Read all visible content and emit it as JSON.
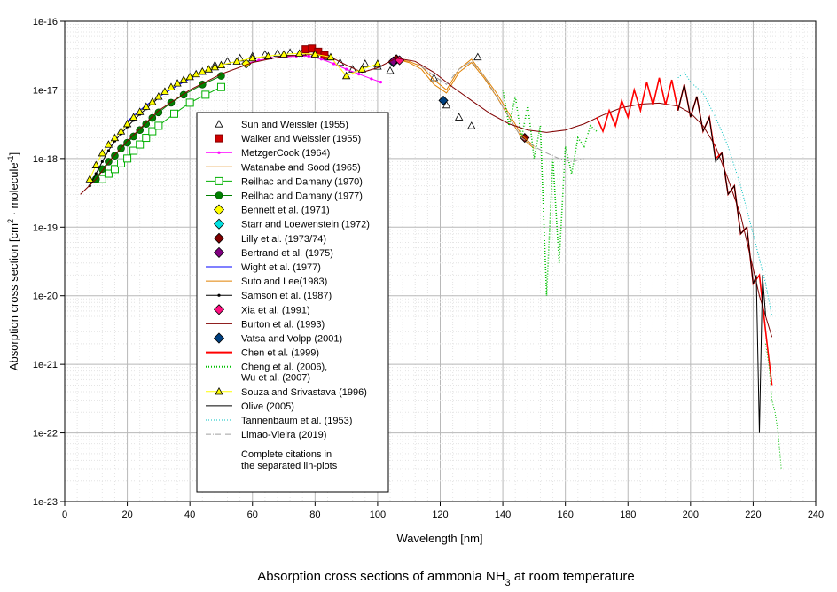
{
  "chart_data": {
    "type": "line",
    "title": "Absorption cross sections of ammonia NH3 at room temperature",
    "title_parts": {
      "main": "Absorption cross sections of ammonia NH",
      "sub": "3",
      "tail": " at room temperature"
    },
    "xlabel": "Wavelength [nm]",
    "ylabel_parts": {
      "a": "Absorption cross section [cm",
      "b": "2",
      "c": " · molecule",
      "d": "-1",
      "e": "]"
    },
    "xlim": [
      0,
      240
    ],
    "ylim_log10": [
      -23,
      -16
    ],
    "grid": true,
    "x_ticks": [
      0,
      20,
      40,
      60,
      80,
      100,
      120,
      140,
      160,
      180,
      200,
      220,
      240
    ],
    "y_ticks": [
      {
        "label": "1e-16",
        "exp": -16
      },
      {
        "label": "1e-17",
        "exp": -17
      },
      {
        "label": "1e-18",
        "exp": -18
      },
      {
        "label": "1e-19",
        "exp": -19
      },
      {
        "label": "1e-20",
        "exp": -20
      },
      {
        "label": "1e-21",
        "exp": -21
      },
      {
        "label": "1e-22",
        "exp": -22
      },
      {
        "label": "1e-23",
        "exp": -23
      }
    ],
    "legend_position": "center-left",
    "legend_note": [
      "Complete citations in",
      "the separated lin-plots"
    ],
    "series": [
      {
        "name": "Sun and Weissler (1955)",
        "style": "marker",
        "marker": "triangle-open",
        "color": "#000000",
        "x": [
          48,
          52,
          56,
          60,
          64,
          68,
          72,
          76,
          80,
          84,
          88,
          92,
          96,
          100,
          104,
          118,
          122,
          126,
          130,
          132
        ],
        "y": [
          2.3e-17,
          2.6e-17,
          2.9e-17,
          3.1e-17,
          3.3e-17,
          3.4e-17,
          3.5e-17,
          3.5e-17,
          3.4e-17,
          3e-17,
          2.5e-17,
          2e-17,
          2.4e-17,
          2.2e-17,
          1.9e-17,
          1.5e-17,
          6e-18,
          4e-18,
          3e-18,
          3e-17
        ]
      },
      {
        "name": "Walker and Weissler (1955)",
        "style": "marker",
        "marker": "square-filled",
        "color": "#d00000",
        "x": [
          77,
          79,
          81,
          83
        ],
        "y": [
          3.9e-17,
          4e-17,
          3.6e-17,
          3.2e-17
        ]
      },
      {
        "name": "MetzgerCook (1964)",
        "style": "line-marker",
        "marker": "dot",
        "color": "#ff00ff",
        "x": [
          58,
          62,
          66,
          70,
          74,
          78,
          82,
          86,
          90,
          94,
          98,
          101
        ],
        "y": [
          2.4e-17,
          2.7e-17,
          2.9e-17,
          3e-17,
          3.1e-17,
          3.1e-17,
          2.8e-17,
          2.4e-17,
          2e-17,
          1.7e-17,
          1.45e-17,
          1.3e-17
        ]
      },
      {
        "name": "Watanabe and Sood (1965)",
        "style": "line",
        "color": "#e08000",
        "x": [
          106,
          110,
          114,
          118,
          122,
          126,
          130,
          134,
          138,
          142,
          146,
          150
        ],
        "y": [
          2.8e-17,
          2.5e-17,
          2e-17,
          1.2e-17,
          9e-18,
          1.8e-17,
          2.5e-17,
          1.5e-17,
          8e-18,
          4e-18,
          2e-18,
          1.4e-18
        ]
      },
      {
        "name": "Reilhac and Damany (1970)",
        "style": "line-marker",
        "marker": "square-open",
        "color": "#00b000",
        "x": [
          12,
          14,
          16,
          18,
          20,
          22,
          24,
          26,
          28,
          30,
          35,
          40,
          45,
          50
        ],
        "y": [
          5e-19,
          6e-19,
          7e-19,
          8.5e-19,
          1e-18,
          1.3e-18,
          1.6e-18,
          2e-18,
          2.5e-18,
          3e-18,
          4.5e-18,
          6.5e-18,
          8.5e-18,
          1.1e-17
        ]
      },
      {
        "name": "Reilhac and Damany (1977)",
        "style": "line-marker",
        "marker": "circle-filled",
        "color": "#008000",
        "x": [
          10,
          12,
          14,
          16,
          18,
          20,
          22,
          24,
          26,
          28,
          30,
          34,
          38,
          44,
          50
        ],
        "y": [
          5e-19,
          7e-19,
          9e-19,
          1.1e-18,
          1.4e-18,
          1.7e-18,
          2.1e-18,
          2.6e-18,
          3.2e-18,
          3.9e-18,
          4.7e-18,
          6.5e-18,
          8.5e-18,
          1.2e-17,
          1.6e-17
        ]
      },
      {
        "name": "Bennett et al. (1971)",
        "style": "marker",
        "marker": "diamond-filled",
        "color": "#ffff00",
        "x": [
          58
        ],
        "y": [
          2.4e-17
        ]
      },
      {
        "name": "Starr and Loewenstein (1972)",
        "style": "marker",
        "marker": "diamond-filled",
        "color": "#00e0e0",
        "x": [
          105
        ],
        "y": [
          2.5e-17
        ]
      },
      {
        "name": "Lilly et al. (1973/74)",
        "style": "marker",
        "marker": "diamond-filled",
        "color": "#800000",
        "x": [
          106,
          147
        ],
        "y": [
          2.8e-17,
          2e-18
        ]
      },
      {
        "name": "Bertrand et al. (1975)",
        "style": "marker",
        "marker": "diamond-filled",
        "color": "#800080",
        "x": [
          105
        ],
        "y": [
          2.6e-17
        ]
      },
      {
        "name": "Wight et al. (1977)",
        "style": "line",
        "color": "#0000ff",
        "x": [
          20,
          26,
          32,
          38,
          44
        ],
        "y": [
          3.5e-18,
          6e-18,
          9e-18,
          1.3e-17,
          1.8e-17
        ]
      },
      {
        "name": "Suto and Lee(1983)",
        "style": "line",
        "color": "#e08000",
        "x": [
          106,
          110,
          114,
          118,
          122,
          126,
          130,
          134,
          138,
          142,
          146,
          150
        ],
        "y": [
          2.8e-17,
          2.6e-17,
          2.2e-17,
          1.4e-17,
          1e-17,
          2e-17,
          2.8e-17,
          1.6e-17,
          9e-18,
          4.5e-18,
          2.2e-18,
          1.5e-18
        ]
      },
      {
        "name": "Samson et al. (1987)",
        "style": "line-marker",
        "marker": "dot",
        "color": "#000000",
        "x": [
          8,
          10,
          12,
          14,
          16,
          18,
          20,
          22,
          24,
          26,
          28,
          30
        ],
        "y": [
          4e-19,
          6e-19,
          9e-19,
          1.3e-18,
          1.8e-18,
          2.3e-18,
          2.9e-18,
          3.6e-18,
          4.4e-18,
          5.3e-18,
          6.4e-18,
          7.6e-18
        ]
      },
      {
        "name": "Xia et al. (1991)",
        "style": "marker",
        "marker": "diamond-filled",
        "color": "#ff1080",
        "x": [
          107
        ],
        "y": [
          2.7e-17
        ]
      },
      {
        "name": "Burton et al. (1993)",
        "style": "line",
        "color": "#800000",
        "x": [
          5,
          10,
          15,
          20,
          25,
          30,
          40,
          50,
          60,
          70,
          80,
          85,
          90,
          95,
          100,
          106,
          112,
          118,
          124,
          130,
          136,
          142,
          148,
          154,
          160,
          166,
          172,
          178,
          184,
          190,
          196,
          200,
          204,
          208,
          212,
          216,
          220,
          222,
          224,
          226
        ],
        "y": [
          3e-19,
          5e-19,
          1e-18,
          1.8e-18,
          3e-18,
          5e-18,
          1e-17,
          1.7e-17,
          2.5e-17,
          3.1e-17,
          3.3e-17,
          3e-17,
          2.3e-17,
          1.8e-17,
          2.1e-17,
          2.9e-17,
          2.6e-17,
          1.8e-17,
          1.1e-17,
          7e-18,
          4.5e-18,
          3.2e-18,
          2.6e-18,
          2.4e-18,
          2.6e-18,
          3.2e-18,
          4.3e-18,
          5.5e-18,
          6.2e-18,
          6.4e-18,
          5.8e-18,
          4.6e-18,
          3e-18,
          1.5e-18,
          5e-19,
          1.5e-19,
          2.5e-20,
          1e-20,
          5e-21,
          2.5e-21
        ]
      },
      {
        "name": "Vatsa and Volpp (2001)",
        "style": "marker",
        "marker": "diamond-filled",
        "color": "#004080",
        "x": [
          121
        ],
        "y": [
          7e-18
        ]
      },
      {
        "name": "Chen et al. (1999)",
        "style": "line",
        "color": "#ff0000",
        "x": [
          170,
          172,
          174,
          176,
          178,
          180,
          182,
          184,
          186,
          188,
          190,
          192,
          194,
          196,
          198,
          200,
          202,
          204,
          206,
          208,
          210,
          212,
          214,
          216,
          218,
          220,
          222,
          224,
          226
        ],
        "y": [
          4e-18,
          2.5e-18,
          5e-18,
          3e-18,
          7e-18,
          4e-18,
          1e-17,
          5e-18,
          1.3e-17,
          6e-18,
          1.5e-17,
          6e-18,
          1.4e-17,
          5e-18,
          1.2e-17,
          4e-18,
          8e-18,
          2.5e-18,
          4e-18,
          1e-18,
          1.2e-18,
          3e-19,
          4e-19,
          8e-20,
          1e-19,
          1.5e-20,
          2e-20,
          3e-21,
          5e-22
        ]
      },
      {
        "name": "Cheng et al. (2006),",
        "name2": "Wu et al. (2007)",
        "style": "dotted",
        "color": "#00c000",
        "x": [
          140,
          142,
          144,
          146,
          148,
          150,
          152,
          154,
          156,
          158,
          160,
          162,
          164,
          166,
          168,
          170
        ],
        "y": [
          1e-17,
          3e-18,
          8e-18,
          2e-18,
          6e-18,
          1e-18,
          3e-18,
          1e-20,
          1e-18,
          3e-20,
          1.5e-18,
          6e-19,
          2e-18,
          1.5e-18,
          3e-18,
          2.5e-18
        ],
        "tail_x": [
          224,
          225,
          226,
          227,
          228,
          229
        ],
        "tail_y": [
          2e-21,
          1e-21,
          3e-22,
          2e-22,
          1e-22,
          3e-23
        ]
      },
      {
        "name": "Souza and Srivastava (1996)",
        "style": "line-marker",
        "marker": "triangle-filled",
        "color": "#ffff00",
        "x": [
          8,
          10,
          12,
          14,
          16,
          18,
          20,
          22,
          24,
          26,
          28,
          30,
          32,
          34,
          36,
          38,
          40,
          42,
          44,
          46,
          48,
          50,
          55,
          60,
          65,
          70,
          75,
          80,
          85,
          90,
          95,
          100
        ],
        "y": [
          5e-19,
          8e-19,
          1.2e-18,
          1.6e-18,
          2e-18,
          2.5e-18,
          3.2e-18,
          4e-18,
          4.8e-18,
          5.7e-18,
          6.7e-18,
          8e-18,
          9.5e-18,
          1.1e-17,
          1.25e-17,
          1.4e-17,
          1.55e-17,
          1.7e-17,
          1.85e-17,
          2e-17,
          2.15e-17,
          2.3e-17,
          2.6e-17,
          2.9e-17,
          3.1e-17,
          3.3e-17,
          3.4e-17,
          3.3e-17,
          3e-17,
          1.6e-17,
          2e-17,
          2.4e-17
        ]
      },
      {
        "name": "Olive (2005)",
        "style": "line",
        "color": "#000000",
        "x": [
          196,
          198,
          200,
          202,
          204,
          206,
          208,
          210,
          212,
          214,
          216,
          218,
          220,
          221,
          222,
          223,
          224
        ],
        "y": [
          5e-18,
          1.2e-17,
          4e-18,
          8e-18,
          2.5e-18,
          4e-18,
          9e-19,
          1.2e-18,
          3e-19,
          4e-19,
          8e-20,
          1e-19,
          1.5e-20,
          2e-20,
          1e-22,
          2e-20,
          5e-21
        ]
      },
      {
        "name": "Tannenbaum et al. (1953)",
        "style": "dotted",
        "color": "#00c0c0",
        "x": [
          196,
          198,
          200,
          204,
          208,
          212,
          216,
          220,
          224,
          226
        ],
        "y": [
          1.5e-17,
          1.8e-17,
          1.3e-17,
          9e-18,
          4e-18,
          1.5e-18,
          4e-19,
          8e-20,
          1.5e-20,
          5e-21
        ]
      },
      {
        "name": "Limao-Vieira (2019)",
        "style": "dash-dot",
        "color": "#a0a0a0",
        "x": [
          114,
          118,
          122,
          126,
          130,
          134,
          138,
          142,
          146,
          150,
          154,
          158,
          162,
          166
        ],
        "y": [
          2.2e-17,
          1.6e-17,
          1.2e-17,
          2e-17,
          2.6e-17,
          1.6e-17,
          8e-18,
          4e-18,
          2e-18,
          1.5e-18,
          1.2e-18,
          1e-18,
          9e-19,
          1e-18
        ]
      }
    ]
  }
}
